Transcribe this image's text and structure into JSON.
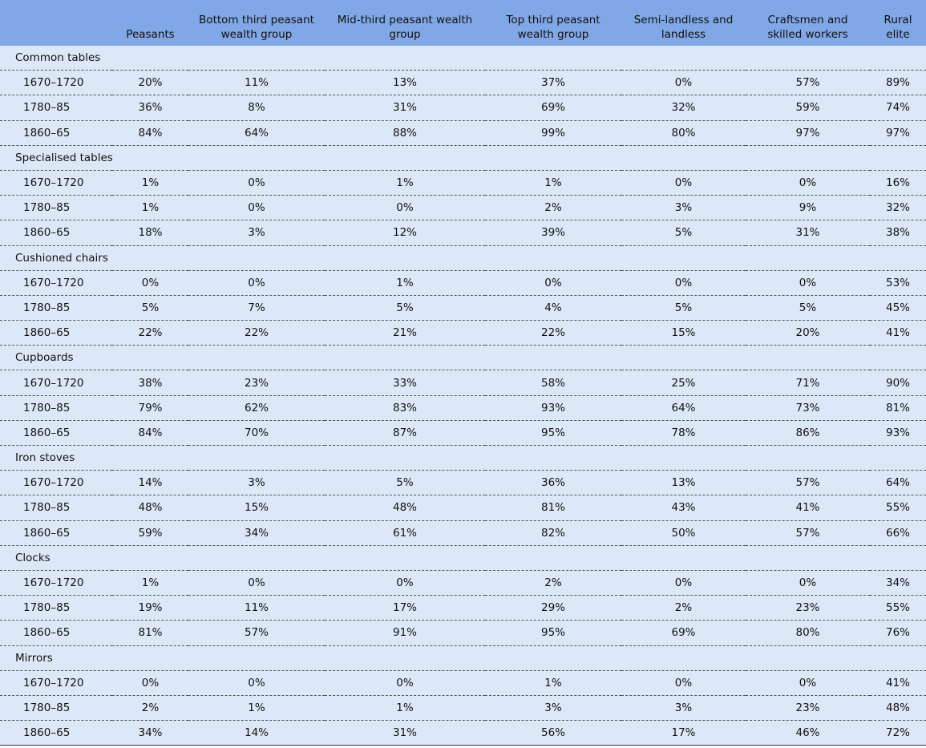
{
  "header": {
    "columns": [
      "Peasants",
      "Bottom third peasant wealth group",
      "Mid-third peasant wealth group",
      "Top third peasant wealth group",
      "Semi-landless and landless",
      "Craftsmen and skilled workers",
      "Rural elite"
    ]
  },
  "sections": [
    {
      "label": "Common tables",
      "rows": [
        {
          "period": "1670–1720",
          "cells": [
            "20%",
            "11%",
            "13%",
            "37%",
            "0%",
            "57%",
            "89%"
          ]
        },
        {
          "period": "1780–85",
          "cells": [
            "36%",
            "8%",
            "31%",
            "69%",
            "32%",
            "59%",
            "74%"
          ]
        },
        {
          "period": "1860–65",
          "cells": [
            "84%",
            "64%",
            "88%",
            "99%",
            "80%",
            "97%",
            "97%"
          ]
        }
      ]
    },
    {
      "label": "Specialised tables",
      "rows": [
        {
          "period": "1670–1720",
          "cells": [
            "1%",
            "0%",
            "1%",
            "1%",
            "0%",
            "0%",
            "16%"
          ]
        },
        {
          "period": "1780–85",
          "cells": [
            "1%",
            "0%",
            "0%",
            "2%",
            "3%",
            "9%",
            "32%"
          ]
        },
        {
          "period": "1860–65",
          "cells": [
            "18%",
            "3%",
            "12%",
            "39%",
            "5%",
            "31%",
            "38%"
          ]
        }
      ]
    },
    {
      "label": "Cushioned chairs",
      "rows": [
        {
          "period": "1670–1720",
          "cells": [
            "0%",
            "0%",
            "1%",
            "0%",
            "0%",
            "0%",
            "53%"
          ]
        },
        {
          "period": "1780–85",
          "cells": [
            "5%",
            "7%",
            "5%",
            "4%",
            "5%",
            "5%",
            "45%"
          ]
        },
        {
          "period": "1860–65",
          "cells": [
            "22%",
            "22%",
            "21%",
            "22%",
            "15%",
            "20%",
            "41%"
          ]
        }
      ]
    },
    {
      "label": "Cupboards",
      "rows": [
        {
          "period": "1670–1720",
          "cells": [
            "38%",
            "23%",
            "33%",
            "58%",
            "25%",
            "71%",
            "90%"
          ]
        },
        {
          "period": "1780–85",
          "cells": [
            "79%",
            "62%",
            "83%",
            "93%",
            "64%",
            "73%",
            "81%"
          ]
        },
        {
          "period": "1860–65",
          "cells": [
            "84%",
            "70%",
            "87%",
            "95%",
            "78%",
            "86%",
            "93%"
          ]
        }
      ]
    },
    {
      "label": "Iron stoves",
      "rows": [
        {
          "period": "1670–1720",
          "cells": [
            "14%",
            "3%",
            "5%",
            "36%",
            "13%",
            "57%",
            "64%"
          ]
        },
        {
          "period": "1780–85",
          "cells": [
            "48%",
            "15%",
            "48%",
            "81%",
            "43%",
            "41%",
            "55%"
          ]
        },
        {
          "period": "1860–65",
          "cells": [
            "59%",
            "34%",
            "61%",
            "82%",
            "50%",
            "57%",
            "66%"
          ]
        }
      ]
    },
    {
      "label": "Clocks",
      "rows": [
        {
          "period": "1670–1720",
          "cells": [
            "1%",
            "0%",
            "0%",
            "2%",
            "0%",
            "0%",
            "34%"
          ]
        },
        {
          "period": "1780–85",
          "cells": [
            "19%",
            "11%",
            "17%",
            "29%",
            "2%",
            "23%",
            "55%"
          ]
        },
        {
          "period": "1860–65",
          "cells": [
            "81%",
            "57%",
            "91%",
            "95%",
            "69%",
            "80%",
            "76%"
          ]
        }
      ]
    },
    {
      "label": "Mirrors",
      "rows": [
        {
          "period": "1670–1720",
          "cells": [
            "0%",
            "0%",
            "0%",
            "1%",
            "0%",
            "0%",
            "41%"
          ]
        },
        {
          "period": "1780–85",
          "cells": [
            "2%",
            "1%",
            "1%",
            "3%",
            "3%",
            "23%",
            "48%"
          ]
        },
        {
          "period": "1860–65",
          "cells": [
            "34%",
            "14%",
            "31%",
            "56%",
            "17%",
            "46%",
            "72%"
          ]
        }
      ]
    }
  ]
}
